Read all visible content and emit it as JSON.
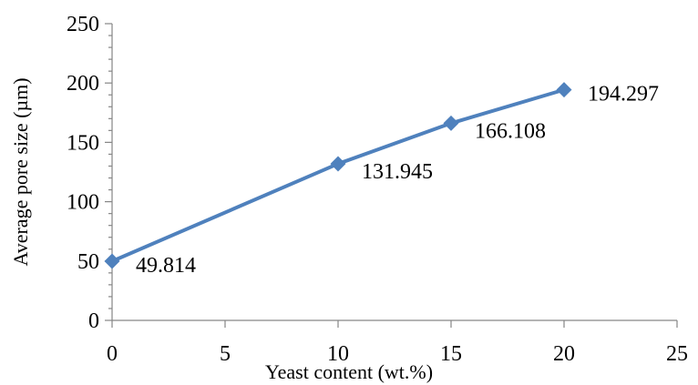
{
  "chart_data": {
    "type": "line",
    "title": "",
    "xlabel": "Yeast content (wt.%)",
    "ylabel": "Average pore size (µm)",
    "xlim": [
      0,
      25
    ],
    "ylim": [
      0,
      250
    ],
    "x_ticks": [
      "0",
      "5",
      "10",
      "15",
      "20",
      "25"
    ],
    "y_ticks": [
      "0",
      "50",
      "100",
      "150",
      "200",
      "250"
    ],
    "x_tick_values": [
      0,
      5,
      10,
      15,
      20,
      25
    ],
    "y_tick_values": [
      0,
      50,
      100,
      150,
      200,
      250
    ],
    "y_minor_step": 10,
    "grid": false,
    "legend": "none",
    "series": [
      {
        "x": [
          0,
          10,
          15,
          20
        ],
        "y": [
          49.814,
          131.945,
          166.108,
          194.297
        ],
        "data_labels": [
          "49.814",
          "131.945",
          "166.108",
          "194.297"
        ],
        "color": "#4F81BD",
        "marker": "diamond"
      }
    ]
  }
}
